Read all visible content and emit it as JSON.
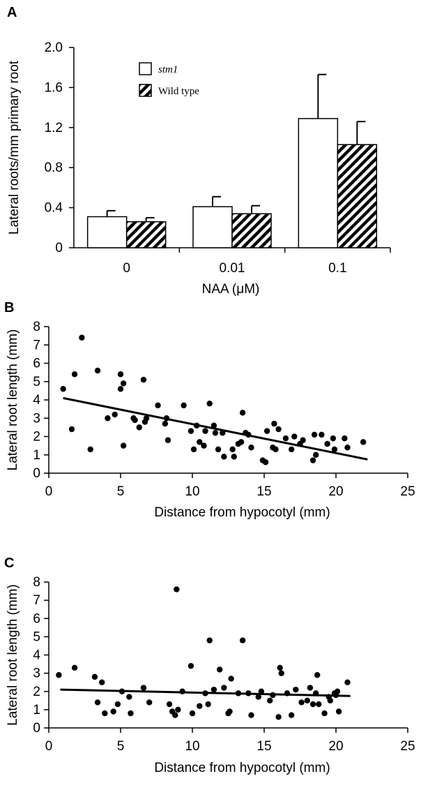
{
  "chart_data": [
    {
      "panel": "A",
      "type": "bar",
      "categories": [
        "0",
        "0.01",
        "0.1"
      ],
      "series": [
        {
          "name": "stm1",
          "values": [
            0.31,
            0.41,
            1.29
          ],
          "errors": [
            0.06,
            0.1,
            0.44
          ],
          "fill": "white"
        },
        {
          "name": "Wild type",
          "values": [
            0.26,
            0.34,
            1.03
          ],
          "errors": [
            0.04,
            0.08,
            0.23
          ],
          "fill": "hatched"
        }
      ],
      "xlabel": "NAA (μM)",
      "ylabel": "Lateral roots/mm primary root",
      "ylim": [
        0,
        2.0
      ],
      "yticks": [
        "0",
        "0.4",
        "0.8",
        "1.2",
        "1.6",
        "2.0"
      ],
      "legend_placement": "top-left",
      "grid": false
    },
    {
      "panel": "B",
      "type": "scatter",
      "xlabel": "Distance from hypocotyl (mm)",
      "ylabel": "Lateral root length (mm)",
      "xlim": [
        0,
        25
      ],
      "ylim": [
        0,
        8
      ],
      "xticks": [
        "0",
        "5",
        "10",
        "15",
        "20",
        "25"
      ],
      "yticks": [
        "0",
        "1",
        "2",
        "3",
        "4",
        "5",
        "6",
        "7",
        "8"
      ],
      "trendline": {
        "x": [
          1.0,
          22.2
        ],
        "y": [
          4.1,
          0.75
        ]
      },
      "grid": false,
      "points": [
        [
          1.0,
          4.6
        ],
        [
          1.6,
          2.4
        ],
        [
          1.8,
          5.4
        ],
        [
          2.3,
          7.4
        ],
        [
          2.9,
          1.3
        ],
        [
          3.4,
          5.6
        ],
        [
          4.1,
          3.0
        ],
        [
          4.6,
          3.2
        ],
        [
          5.0,
          5.4
        ],
        [
          5.0,
          4.6
        ],
        [
          5.2,
          4.9
        ],
        [
          5.2,
          1.5
        ],
        [
          5.9,
          3.0
        ],
        [
          6.0,
          2.9
        ],
        [
          6.3,
          2.5
        ],
        [
          6.6,
          5.1
        ],
        [
          6.7,
          2.8
        ],
        [
          6.8,
          3.0
        ],
        [
          7.6,
          3.7
        ],
        [
          8.1,
          2.7
        ],
        [
          8.2,
          3.0
        ],
        [
          8.3,
          1.8
        ],
        [
          9.4,
          3.7
        ],
        [
          9.9,
          2.3
        ],
        [
          10.1,
          1.3
        ],
        [
          10.3,
          2.6
        ],
        [
          10.5,
          1.7
        ],
        [
          10.8,
          1.5
        ],
        [
          10.9,
          2.3
        ],
        [
          11.2,
          3.8
        ],
        [
          11.5,
          2.6
        ],
        [
          11.6,
          2.2
        ],
        [
          11.8,
          1.3
        ],
        [
          12.1,
          2.2
        ],
        [
          12.2,
          0.9
        ],
        [
          12.8,
          1.3
        ],
        [
          12.9,
          0.9
        ],
        [
          13.2,
          1.6
        ],
        [
          13.5,
          3.3
        ],
        [
          13.4,
          1.7
        ],
        [
          13.7,
          2.2
        ],
        [
          13.9,
          2.1
        ],
        [
          14.1,
          1.4
        ],
        [
          14.9,
          0.7
        ],
        [
          15.1,
          0.6
        ],
        [
          15.2,
          2.3
        ],
        [
          15.6,
          1.4
        ],
        [
          15.7,
          2.7
        ],
        [
          15.8,
          1.3
        ],
        [
          16.0,
          2.4
        ],
        [
          16.5,
          1.9
        ],
        [
          16.9,
          1.3
        ],
        [
          17.1,
          2.0
        ],
        [
          17.5,
          1.6
        ],
        [
          17.7,
          1.8
        ],
        [
          18.4,
          0.7
        ],
        [
          18.5,
          2.1
        ],
        [
          18.6,
          1.0
        ],
        [
          19.0,
          2.1
        ],
        [
          19.4,
          1.6
        ],
        [
          19.8,
          1.9
        ],
        [
          19.9,
          1.3
        ],
        [
          20.6,
          1.9
        ],
        [
          20.8,
          1.4
        ],
        [
          21.9,
          1.7
        ]
      ]
    },
    {
      "panel": "C",
      "type": "scatter",
      "xlabel": "Distance from hypocotyl (mm)",
      "ylabel": "Lateral root length (mm)",
      "xlim": [
        0,
        25
      ],
      "ylim": [
        0,
        8
      ],
      "xticks": [
        "0",
        "5",
        "10",
        "15",
        "20",
        "25"
      ],
      "yticks": [
        "0",
        "1",
        "2",
        "3",
        "4",
        "5",
        "6",
        "7",
        "8"
      ],
      "trendline": {
        "x": [
          0.8,
          21.0
        ],
        "y": [
          2.1,
          1.75
        ]
      },
      "grid": false,
      "points": [
        [
          0.7,
          2.9
        ],
        [
          1.8,
          3.3
        ],
        [
          3.2,
          2.8
        ],
        [
          3.4,
          1.4
        ],
        [
          3.7,
          2.5
        ],
        [
          3.9,
          0.8
        ],
        [
          4.5,
          0.9
        ],
        [
          4.8,
          1.3
        ],
        [
          5.1,
          2.0
        ],
        [
          5.6,
          1.7
        ],
        [
          5.7,
          0.8
        ],
        [
          6.6,
          2.2
        ],
        [
          7.0,
          1.4
        ],
        [
          8.4,
          1.3
        ],
        [
          8.6,
          0.9
        ],
        [
          8.8,
          0.7
        ],
        [
          8.9,
          7.6
        ],
        [
          9.0,
          1.0
        ],
        [
          9.3,
          2.0
        ],
        [
          9.9,
          3.4
        ],
        [
          10.0,
          0.8
        ],
        [
          10.5,
          1.2
        ],
        [
          10.9,
          1.9
        ],
        [
          11.1,
          1.3
        ],
        [
          11.2,
          4.8
        ],
        [
          11.5,
          2.1
        ],
        [
          11.9,
          3.2
        ],
        [
          12.2,
          2.2
        ],
        [
          12.5,
          0.8
        ],
        [
          12.6,
          0.9
        ],
        [
          12.7,
          2.7
        ],
        [
          13.2,
          1.9
        ],
        [
          13.5,
          4.8
        ],
        [
          13.9,
          1.9
        ],
        [
          14.1,
          0.7
        ],
        [
          14.6,
          1.7
        ],
        [
          14.8,
          2.0
        ],
        [
          15.4,
          1.5
        ],
        [
          15.6,
          1.8
        ],
        [
          16.0,
          0.6
        ],
        [
          16.1,
          3.3
        ],
        [
          16.2,
          3.0
        ],
        [
          16.6,
          1.9
        ],
        [
          16.9,
          0.7
        ],
        [
          17.2,
          2.1
        ],
        [
          17.6,
          1.4
        ],
        [
          18.0,
          1.5
        ],
        [
          18.2,
          2.2
        ],
        [
          18.4,
          1.3
        ],
        [
          18.6,
          1.9
        ],
        [
          18.7,
          2.9
        ],
        [
          18.8,
          1.3
        ],
        [
          19.2,
          0.8
        ],
        [
          19.5,
          1.7
        ],
        [
          19.6,
          1.5
        ],
        [
          19.9,
          1.9
        ],
        [
          20.0,
          1.8
        ],
        [
          20.1,
          2.0
        ],
        [
          20.2,
          0.9
        ],
        [
          20.8,
          2.5
        ]
      ]
    }
  ]
}
